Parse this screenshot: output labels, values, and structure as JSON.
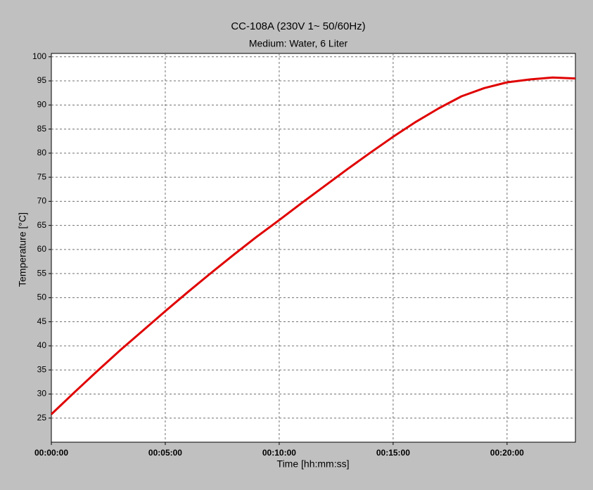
{
  "chart_data": {
    "type": "line",
    "title": "CC-108A (230V 1~ 50/60Hz)",
    "subtitle": "Medium: Water, 6 Liter",
    "x_label": "Time [hh:mm:ss]",
    "y_label": "Temperature [°C]",
    "x": [
      0,
      60,
      120,
      180,
      240,
      300,
      360,
      420,
      480,
      540,
      600,
      660,
      720,
      780,
      840,
      900,
      960,
      1020,
      1080,
      1140,
      1200,
      1260,
      1320,
      1380
    ],
    "series": [
      {
        "name": "Temperature",
        "color": "#e00000",
        "values": [
          25.8,
          30.3,
          34.7,
          39.0,
          43.1,
          47.2,
          51.2,
          55.1,
          58.9,
          62.6,
          66.1,
          69.7,
          73.2,
          76.7,
          80.1,
          83.4,
          86.5,
          89.3,
          91.8,
          93.5,
          94.7,
          95.3,
          95.7,
          95.5
        ]
      }
    ],
    "xlim": [
      0,
      1380
    ],
    "xticks": [
      {
        "value": 0,
        "label": "00:00:00"
      },
      {
        "value": 300,
        "label": "00:05:00"
      },
      {
        "value": 600,
        "label": "00:10:00"
      },
      {
        "value": 900,
        "label": "00:15:00"
      },
      {
        "value": 1200,
        "label": "00:20:00"
      }
    ],
    "ylim": [
      20,
      100.7
    ],
    "yticks": [
      25,
      30,
      35,
      40,
      45,
      50,
      55,
      60,
      65,
      70,
      75,
      80,
      85,
      90,
      95,
      100
    ],
    "grid": true
  }
}
